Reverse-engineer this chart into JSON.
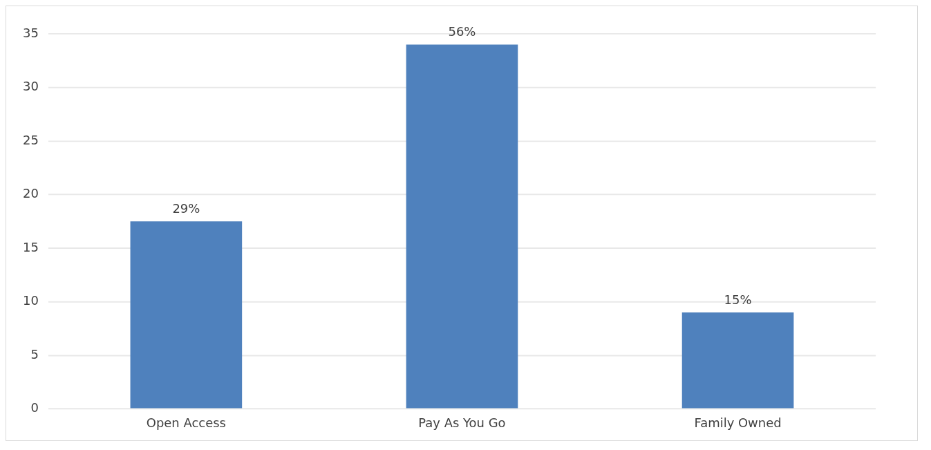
{
  "chart_data": {
    "type": "bar",
    "categories": [
      "Open Access",
      "Pay As You Go",
      "Family Owned"
    ],
    "values": [
      17.5,
      34,
      9
    ],
    "annotations": [
      {
        "text": "29%",
        "x": "Open Access",
        "y": 17.5
      },
      {
        "text": "56%",
        "x": "Pay As You Go",
        "y": 34
      },
      {
        "text": "15%",
        "x": "Family Owned",
        "y": 9
      }
    ],
    "color": "#4f81bd",
    "ylim": [
      0,
      35
    ],
    "yticks": [
      0,
      5,
      10,
      15,
      20,
      25,
      30,
      35
    ],
    "grid": "y",
    "legend": false
  }
}
